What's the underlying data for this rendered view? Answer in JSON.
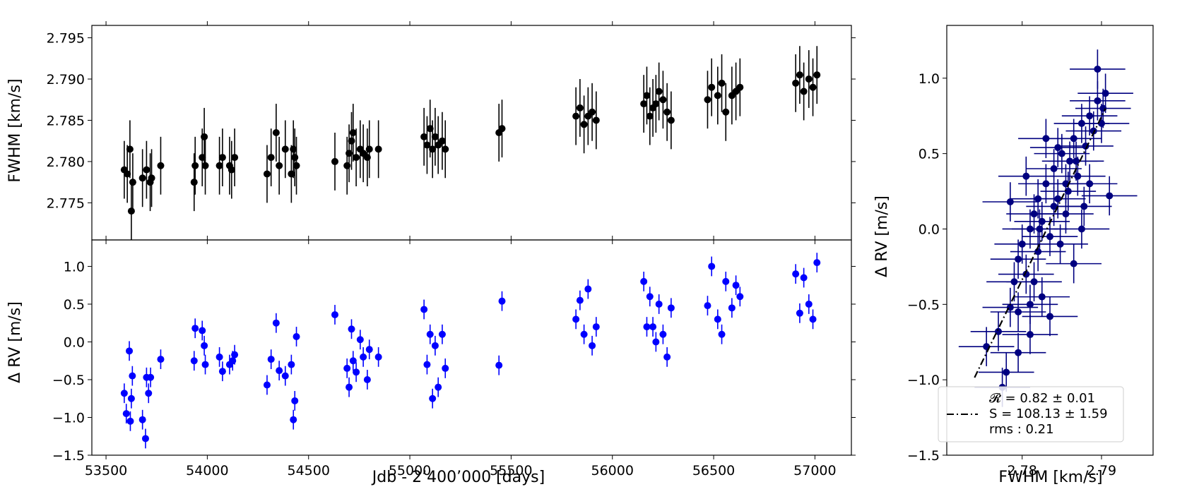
{
  "chart_data": [
    {
      "type": "scatter",
      "panel": "top-left",
      "xlabel": "",
      "ylabel": "FWHM [km/s]",
      "xlim": [
        53430,
        57180
      ],
      "ylim": [
        2.7705,
        2.7965
      ],
      "xticks": [
        53500,
        54000,
        54500,
        55000,
        55500,
        56000,
        56500,
        57000
      ],
      "xtick_labels": [
        "",
        "",
        "",
        "",
        "",
        "",
        "",
        ""
      ],
      "yticks": [
        2.775,
        2.78,
        2.785,
        2.79,
        2.795
      ],
      "ytick_labels": [
        "2.775",
        "2.780",
        "2.785",
        "2.790",
        "2.795"
      ],
      "grid": false,
      "color": "#000000",
      "series": [
        {
          "x": [
            53590,
            53605,
            53618,
            53625,
            53632,
            53680,
            53700,
            53718,
            53725,
            53770,
            53935,
            53940,
            53975,
            53985,
            53990,
            54060,
            54075,
            54110,
            54120,
            54135,
            54295,
            54315,
            54340,
            54355,
            54385,
            54415,
            54425,
            54432,
            54440,
            54630,
            54690,
            54700,
            54712,
            54720,
            54735,
            54755,
            54770,
            54790,
            54800,
            54845,
            55070,
            55085,
            55100,
            55112,
            55125,
            55140,
            55160,
            55175,
            55440,
            55455,
            55820,
            55840,
            55860,
            55880,
            55900,
            55920,
            56155,
            56170,
            56185,
            56200,
            56215,
            56230,
            56250,
            56270,
            56290,
            56470,
            56490,
            56520,
            56540,
            56560,
            56590,
            56610,
            56630,
            56905,
            56925,
            56945,
            56970,
            56990,
            57010
          ],
          "y": [
            2.779,
            2.7785,
            2.7815,
            2.774,
            2.7775,
            2.778,
            2.779,
            2.7775,
            2.778,
            2.7795,
            2.7775,
            2.7795,
            2.7805,
            2.783,
            2.7795,
            2.7795,
            2.7805,
            2.7795,
            2.779,
            2.7805,
            2.7785,
            2.7805,
            2.7835,
            2.7795,
            2.7815,
            2.7785,
            2.7815,
            2.7805,
            2.7795,
            2.78,
            2.7795,
            2.781,
            2.7825,
            2.7835,
            2.7805,
            2.7815,
            2.781,
            2.7805,
            2.7815,
            2.7815,
            2.783,
            2.782,
            2.784,
            2.7815,
            2.783,
            2.782,
            2.7825,
            2.7815,
            2.7835,
            2.784,
            2.7855,
            2.7865,
            2.7845,
            2.7855,
            2.786,
            2.785,
            2.787,
            2.788,
            2.7855,
            2.7865,
            2.787,
            2.7885,
            2.7875,
            2.786,
            2.785,
            2.7875,
            2.789,
            2.788,
            2.7895,
            2.786,
            2.788,
            2.7885,
            2.789,
            2.7895,
            2.7905,
            2.7885,
            2.79,
            2.789,
            2.7905
          ],
          "yerr": 0.0035
        }
      ]
    },
    {
      "type": "scatter",
      "panel": "bottom-left",
      "xlabel": "Jdb - 2’400’000 [days]",
      "ylabel": "Δ RV [m/s]",
      "xlim": [
        53430,
        57180
      ],
      "ylim": [
        -1.5,
        1.35
      ],
      "xticks": [
        53500,
        54000,
        54500,
        55000,
        55500,
        56000,
        56500,
        57000
      ],
      "xtick_labels": [
        "53500",
        "54000",
        "54500",
        "55000",
        "55500",
        "56000",
        "56500",
        "57000"
      ],
      "yticks": [
        -1.5,
        -1.0,
        -0.5,
        0.0,
        0.5,
        1.0
      ],
      "ytick_labels": [
        "−1.5",
        "−1.0",
        "−0.5",
        "0.0",
        "0.5",
        "1.0"
      ],
      "grid": false,
      "color": "#0000ff",
      "series": [
        {
          "x": [
            53590,
            53600,
            53615,
            53620,
            53625,
            53630,
            53680,
            53695,
            53700,
            53710,
            53720,
            53770,
            53935,
            53940,
            53975,
            53985,
            53990,
            54060,
            54075,
            54110,
            54125,
            54135,
            54295,
            54315,
            54340,
            54355,
            54385,
            54415,
            54425,
            54432,
            54440,
            54630,
            54690,
            54700,
            54712,
            54720,
            54735,
            54755,
            54770,
            54790,
            54800,
            54845,
            55070,
            55085,
            55100,
            55112,
            55125,
            55140,
            55160,
            55175,
            55440,
            55455,
            55820,
            55840,
            55860,
            55880,
            55900,
            55920,
            56155,
            56170,
            56185,
            56200,
            56215,
            56230,
            56250,
            56270,
            56290,
            56470,
            56490,
            56520,
            56540,
            56560,
            56590,
            56610,
            56630,
            56905,
            56925,
            56945,
            56970,
            56990,
            57010
          ],
          "y": [
            -0.68,
            -0.95,
            -0.12,
            -1.05,
            -0.75,
            -0.45,
            -1.03,
            -1.28,
            -0.47,
            -0.68,
            -0.47,
            -0.23,
            -0.25,
            0.18,
            0.15,
            -0.05,
            -0.3,
            -0.2,
            -0.39,
            -0.3,
            -0.25,
            -0.17,
            -0.57,
            -0.23,
            0.25,
            -0.38,
            -0.45,
            -0.3,
            -1.03,
            -0.78,
            0.07,
            0.36,
            -0.35,
            -0.6,
            0.17,
            -0.25,
            -0.4,
            0.03,
            -0.2,
            -0.5,
            -0.1,
            -0.2,
            0.43,
            -0.3,
            0.1,
            -0.75,
            -0.05,
            -0.6,
            0.1,
            -0.35,
            -0.31,
            0.54,
            0.3,
            0.55,
            0.1,
            0.7,
            -0.05,
            0.2,
            0.8,
            0.2,
            0.6,
            0.2,
            0.0,
            0.5,
            0.1,
            -0.2,
            0.45,
            0.48,
            1.0,
            0.3,
            0.1,
            0.8,
            0.45,
            0.75,
            0.6,
            0.9,
            0.38,
            0.85,
            0.5,
            0.3,
            1.05
          ],
          "yerr": 0.13
        }
      ]
    },
    {
      "type": "scatter",
      "panel": "right",
      "xlabel": "FWHM [km/s]",
      "ylabel": "Δ RV [m/s]",
      "xlim": [
        2.7705,
        2.7965
      ],
      "ylim": [
        -1.5,
        1.35
      ],
      "xticks": [
        2.78,
        2.79
      ],
      "xtick_labels": [
        "2.78",
        "2.79"
      ],
      "yticks": [
        -1.5,
        -1.0,
        -0.5,
        0.0,
        0.5,
        1.0
      ],
      "ytick_labels": [
        "−1.5",
        "−1.0",
        "−0.5",
        "0.0",
        "0.5",
        "1.0"
      ],
      "grid": false,
      "color": "#000080",
      "legend": "lower-left",
      "fit_line": {
        "slope": 108.13,
        "x": [
          2.774,
          2.7905
        ]
      },
      "legend_lines": [
        "𝓡 = 0.82 ± 0.01",
        "S = 108.13 ± 1.59",
        "rms : 0.21"
      ],
      "series": [
        {
          "x": [
            2.7755,
            2.777,
            2.778,
            2.7785,
            2.779,
            2.7795,
            2.7795,
            2.78,
            2.7805,
            2.781,
            2.781,
            2.7815,
            2.782,
            2.782,
            2.7825,
            2.783,
            2.7835,
            2.784,
            2.784,
            2.7845,
            2.785,
            2.7855,
            2.786,
            2.7865,
            2.787,
            2.7875,
            2.788,
            2.7885,
            2.789,
            2.7895,
            2.79,
            2.7905,
            2.791,
            2.7785,
            2.7815,
            2.7825,
            2.7845,
            2.7865,
            2.7885,
            2.7895,
            2.7775,
            2.7805,
            2.7835,
            2.7855,
            2.7875,
            2.781,
            2.783,
            2.7858,
            2.7902,
            2.7868,
            2.7795,
            2.7822,
            2.7848,
            2.7878
          ],
          "y": [
            -0.78,
            -0.68,
            -0.95,
            -0.52,
            -0.35,
            -0.2,
            -0.82,
            -0.1,
            -0.3,
            0.0,
            -0.5,
            0.1,
            -0.15,
            0.2,
            0.05,
            0.3,
            -0.05,
            0.4,
            0.15,
            0.2,
            0.5,
            0.3,
            0.45,
            0.6,
            0.35,
            0.7,
            0.55,
            0.75,
            0.65,
            0.85,
            0.7,
            0.9,
            0.22,
            0.18,
            -0.35,
            -0.45,
            0.54,
            -0.23,
            0.3,
            1.06,
            -1.05,
            0.35,
            -0.58,
            0.1,
            0.0,
            -0.7,
            0.6,
            0.25,
            0.8,
            0.45,
            -0.55,
            0.0,
            -0.1,
            0.15
          ],
          "xerr": 0.0035,
          "yerr": 0.13
        }
      ]
    }
  ]
}
